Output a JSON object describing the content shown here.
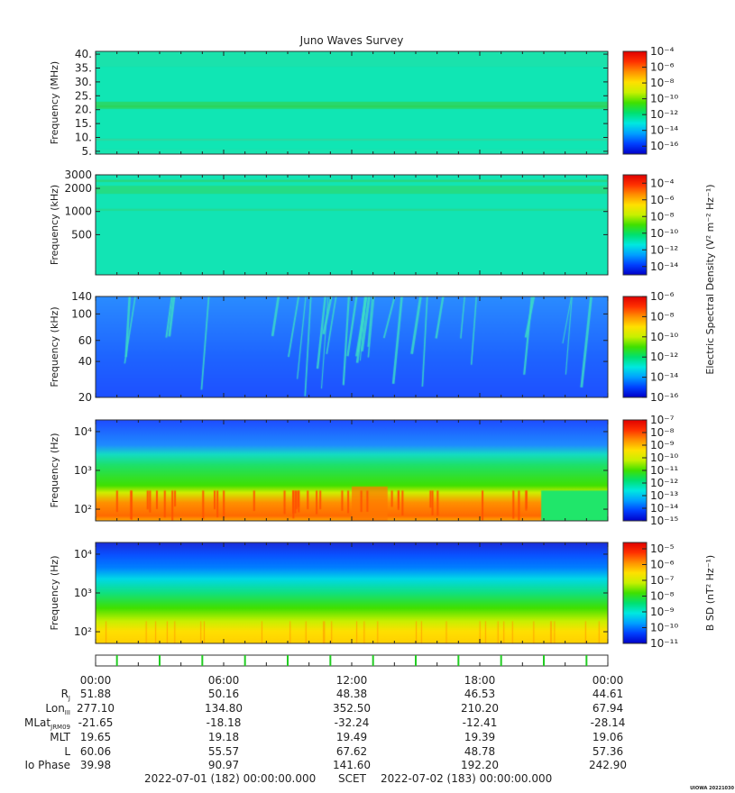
{
  "figure": {
    "title": "Juno Waves Survey",
    "footer_left": "2022-07-01 (182) 00:00:00.000",
    "footer_mid": "SCET",
    "footer_right": "2022-07-02 (183) 00:00:00.000",
    "credit": "UIOWA 20221030",
    "e_colorbar_label": "Electric Spectral Density (V² m⁻² Hz⁻¹)",
    "b_colorbar_label": "B SD (nT² Hz⁻¹)"
  },
  "colors": {
    "colormap": [
      "#0000c8",
      "#0040ff",
      "#00a0ff",
      "#00e8e0",
      "#00e070",
      "#40e000",
      "#c8f000",
      "#ffe000",
      "#ff9000",
      "#ff3000",
      "#e00000"
    ],
    "event_marker": "#22cc22"
  },
  "chart_data": [
    {
      "type": "heatmap",
      "panel": "hfr-high",
      "ylabel": "Frequency (MHz)",
      "yscale": "linear",
      "ylim": [
        4,
        41
      ],
      "yticks": [
        {
          "v": 5,
          "label": "5."
        },
        {
          "v": 10,
          "label": "10."
        },
        {
          "v": 15,
          "label": "15."
        },
        {
          "v": 20,
          "label": "20."
        },
        {
          "v": 25,
          "label": "25."
        },
        {
          "v": 30,
          "label": "30."
        },
        {
          "v": 35,
          "label": "35."
        },
        {
          "v": 40,
          "label": "40."
        }
      ],
      "colorbar": {
        "scale": "log",
        "range": [
          -17,
          -4
        ],
        "ticks": [
          {
            "v": -4,
            "label": "10⁻⁴"
          },
          {
            "v": -6,
            "label": "10⁻⁶"
          },
          {
            "v": -8,
            "label": "10⁻⁸"
          },
          {
            "v": -10,
            "label": "10⁻¹⁰"
          },
          {
            "v": -12,
            "label": "10⁻¹²"
          },
          {
            "v": -14,
            "label": "10⁻¹⁴"
          },
          {
            "v": -16,
            "label": "10⁻¹⁶"
          }
        ]
      }
    },
    {
      "type": "heatmap",
      "panel": "hfr-low",
      "ylabel": "Frequency (kHz)",
      "yscale": "log",
      "ylim": [
        150,
        3000
      ],
      "yticks": [
        {
          "v": 500,
          "label": "500"
        },
        {
          "v": 1000,
          "label": "1000"
        },
        {
          "v": 2000,
          "label": "2000"
        },
        {
          "v": 3000,
          "label": "3000"
        }
      ],
      "colorbar": {
        "scale": "log",
        "range": [
          -15,
          -3
        ],
        "ticks": [
          {
            "v": -4,
            "label": "10⁻⁴"
          },
          {
            "v": -6,
            "label": "10⁻⁶"
          },
          {
            "v": -8,
            "label": "10⁻⁸"
          },
          {
            "v": -10,
            "label": "10⁻¹⁰"
          },
          {
            "v": -12,
            "label": "10⁻¹²"
          },
          {
            "v": -14,
            "label": "10⁻¹⁴"
          }
        ]
      }
    },
    {
      "type": "heatmap",
      "panel": "lfr-high",
      "ylabel": "Frequency (kHz)",
      "yscale": "log",
      "ylim": [
        20,
        140
      ],
      "yticks": [
        {
          "v": 20,
          "label": "20"
        },
        {
          "v": 40,
          "label": "40"
        },
        {
          "v": 60,
          "label": "60"
        },
        {
          "v": 100,
          "label": "100"
        },
        {
          "v": 140,
          "label": "140"
        }
      ],
      "colorbar": {
        "scale": "log",
        "range": [
          -16,
          -6
        ],
        "ticks": [
          {
            "v": -6,
            "label": "10⁻⁶"
          },
          {
            "v": -8,
            "label": "10⁻⁸"
          },
          {
            "v": -10,
            "label": "10⁻¹⁰"
          },
          {
            "v": -12,
            "label": "10⁻¹²"
          },
          {
            "v": -14,
            "label": "10⁻¹⁴"
          },
          {
            "v": -16,
            "label": "10⁻¹⁶"
          }
        ]
      }
    },
    {
      "type": "heatmap",
      "panel": "lfr-e",
      "ylabel": "Frequency (Hz)",
      "yscale": "log",
      "ylim": [
        50,
        20000
      ],
      "yticks": [
        {
          "v": 100,
          "label": "10²"
        },
        {
          "v": 1000,
          "label": "10³"
        },
        {
          "v": 10000,
          "label": "10⁴"
        }
      ],
      "colorbar": {
        "scale": "log",
        "range": [
          -15,
          -7
        ],
        "ticks": [
          {
            "v": -7,
            "label": "10⁻⁷"
          },
          {
            "v": -8,
            "label": "10⁻⁸"
          },
          {
            "v": -9,
            "label": "10⁻⁹"
          },
          {
            "v": -10,
            "label": "10⁻¹⁰"
          },
          {
            "v": -11,
            "label": "10⁻¹¹"
          },
          {
            "v": -12,
            "label": "10⁻¹²"
          },
          {
            "v": -13,
            "label": "10⁻¹³"
          },
          {
            "v": -14,
            "label": "10⁻¹⁴"
          },
          {
            "v": -15,
            "label": "10⁻¹⁵"
          }
        ]
      }
    },
    {
      "type": "heatmap",
      "panel": "lfr-b",
      "ylabel": "Frequency (Hz)",
      "yscale": "log",
      "ylim": [
        50,
        20000
      ],
      "yticks": [
        {
          "v": 100,
          "label": "10²"
        },
        {
          "v": 1000,
          "label": "10³"
        },
        {
          "v": 10000,
          "label": "10⁴"
        }
      ],
      "colorbar": {
        "scale": "log",
        "range": [
          -11,
          -4.6
        ],
        "ticks": [
          {
            "v": -5,
            "label": "10⁻⁵"
          },
          {
            "v": -6,
            "label": "10⁻⁶"
          },
          {
            "v": -7,
            "label": "10⁻⁷"
          },
          {
            "v": -8,
            "label": "10⁻⁸"
          },
          {
            "v": -9,
            "label": "10⁻⁹"
          },
          {
            "v": -10,
            "label": "10⁻¹⁰"
          },
          {
            "v": -11,
            "label": "10⁻¹¹"
          }
        ]
      }
    }
  ],
  "ephemeris": {
    "times": [
      "00:00",
      "06:00",
      "12:00",
      "18:00",
      "00:00"
    ],
    "rows": [
      {
        "label": "R",
        "sub": "J",
        "values": [
          "51.88",
          "50.16",
          "48.38",
          "46.53",
          "44.61"
        ]
      },
      {
        "label": "Lon",
        "sub": "III",
        "values": [
          "277.10",
          "134.80",
          "352.50",
          "210.20",
          "67.94"
        ]
      },
      {
        "label": "MLat",
        "sub": "JRM09",
        "values": [
          "-21.65",
          "-18.18",
          "-32.24",
          "-12.41",
          "-28.14"
        ]
      },
      {
        "label": "MLT",
        "sub": "",
        "values": [
          "19.65",
          "19.18",
          "19.49",
          "19.39",
          "19.06"
        ]
      },
      {
        "label": "L",
        "sub": "",
        "values": [
          "60.06",
          "55.57",
          "67.62",
          "48.78",
          "57.36"
        ]
      },
      {
        "label": "Io Phase",
        "sub": "",
        "values": [
          "39.98",
          "90.97",
          "141.60",
          "192.20",
          "242.90"
        ]
      }
    ],
    "event_markers_hours": [
      1,
      3,
      5,
      7,
      9,
      11,
      13,
      15,
      17,
      19,
      21,
      23
    ]
  }
}
